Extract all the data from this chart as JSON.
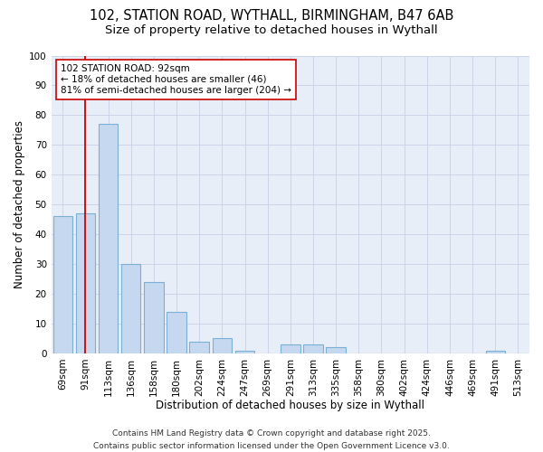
{
  "title_line1": "102, STATION ROAD, WYTHALL, BIRMINGHAM, B47 6AB",
  "title_line2": "Size of property relative to detached houses in Wythall",
  "xlabel": "Distribution of detached houses by size in Wythall",
  "ylabel": "Number of detached properties",
  "categories": [
    "69sqm",
    "91sqm",
    "113sqm",
    "136sqm",
    "158sqm",
    "180sqm",
    "202sqm",
    "224sqm",
    "247sqm",
    "269sqm",
    "291sqm",
    "313sqm",
    "335sqm",
    "358sqm",
    "380sqm",
    "402sqm",
    "424sqm",
    "446sqm",
    "469sqm",
    "491sqm",
    "513sqm"
  ],
  "values": [
    46,
    47,
    77,
    30,
    24,
    14,
    4,
    5,
    1,
    0,
    3,
    3,
    2,
    0,
    0,
    0,
    0,
    0,
    0,
    1,
    0
  ],
  "bar_color": "#c5d8f0",
  "bar_edge_color": "#7bafd4",
  "vline_x_index": 1,
  "vline_color": "#cc0000",
  "annotation_line1": "102 STATION ROAD: 92sqm",
  "annotation_line2": "← 18% of detached houses are smaller (46)",
  "annotation_line3": "81% of semi-detached houses are larger (204) →",
  "annotation_box_color": "#ffffff",
  "annotation_box_edge": "#cc0000",
  "ylim": [
    0,
    100
  ],
  "yticks": [
    0,
    10,
    20,
    30,
    40,
    50,
    60,
    70,
    80,
    90,
    100
  ],
  "grid_color": "#c8d0e8",
  "background_color": "#e8eef8",
  "footer_line1": "Contains HM Land Registry data © Crown copyright and database right 2025.",
  "footer_line2": "Contains public sector information licensed under the Open Government Licence v3.0.",
  "title_fontsize": 10.5,
  "subtitle_fontsize": 9.5,
  "xlabel_fontsize": 8.5,
  "ylabel_fontsize": 8.5,
  "tick_fontsize": 7.5,
  "annotation_fontsize": 7.5,
  "footer_fontsize": 6.5
}
